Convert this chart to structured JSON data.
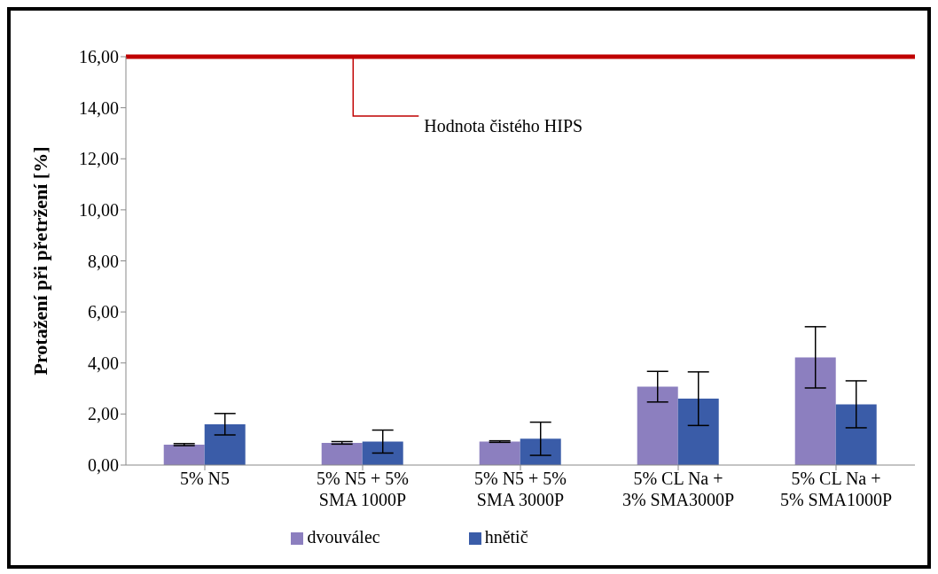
{
  "chart_data": {
    "type": "bar",
    "ylabel": "Protažení při přetržení [%]",
    "categories": [
      "5% N5",
      "5% N5 + 5% SMA 1000P",
      "5% N5 + 5% SMA 3000P",
      "5% CL Na + 3% SMA3000P",
      "5% CL Na + 5% SMA1000P"
    ],
    "series": [
      {
        "name": "dvouválec",
        "color": "#8c7fbf",
        "values": [
          0.8,
          0.87,
          0.92,
          3.07,
          4.22
        ],
        "errors": [
          0.04,
          0.05,
          0.03,
          0.6,
          1.2
        ]
      },
      {
        "name": "hnětič",
        "color": "#3a5ca8",
        "values": [
          1.6,
          0.92,
          1.03,
          2.6,
          2.38
        ],
        "errors": [
          0.42,
          0.45,
          0.65,
          1.05,
          0.92
        ]
      }
    ],
    "ylim": [
      0,
      16
    ],
    "yticks": [
      {
        "value": 0,
        "label": "0,00"
      },
      {
        "value": 2,
        "label": "2,00"
      },
      {
        "value": 4,
        "label": "4,00"
      },
      {
        "value": 6,
        "label": "6,00"
      },
      {
        "value": 8,
        "label": "8,00"
      },
      {
        "value": 10,
        "label": "10,00"
      },
      {
        "value": 12,
        "label": "12,00"
      },
      {
        "value": 14,
        "label": "14,00"
      },
      {
        "value": 16,
        "label": "16,00"
      }
    ],
    "ref_lines": [
      {
        "axis": "y",
        "value": 16,
        "label": "Hodnota čistého HIPS",
        "color": "#c00000"
      }
    ],
    "grid": false,
    "legend": "bottom"
  }
}
